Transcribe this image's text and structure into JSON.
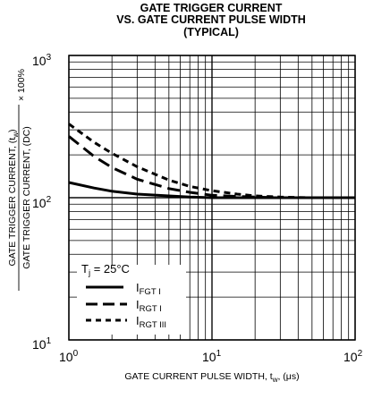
{
  "chart_data": {
    "type": "line",
    "title_lines": [
      "GATE TRIGGER CURRENT",
      "VS. GATE CURRENT PULSE WIDTH",
      "(TYPICAL)"
    ],
    "x_axis": {
      "scale": "log",
      "range": [
        1,
        100
      ],
      "label_prefix": "GATE CURRENT PULSE WIDTH, t",
      "label_sub": "w",
      "label_suffix": ", (μs)",
      "ticks": [
        {
          "base": "10",
          "exp": "0",
          "value": 1
        },
        {
          "base": "10",
          "exp": "1",
          "value": 10
        },
        {
          "base": "10",
          "exp": "2",
          "value": 100
        }
      ]
    },
    "y_axis": {
      "scale": "log",
      "range": [
        10,
        1000
      ],
      "label_top": "GATE TRIGGER CURRENT, (t",
      "label_top_sub": "w",
      "label_top_end": ")",
      "label_bottom": "GATE TRIGGER CURRENT, (DC)",
      "label_factor": "× 100%",
      "ticks": [
        {
          "base": "10",
          "exp": "1",
          "value": 10
        },
        {
          "base": "10",
          "exp": "2",
          "value": 100
        },
        {
          "base": "10",
          "exp": "3",
          "value": 1000
        }
      ]
    },
    "grid": true,
    "legend": {
      "placement": "bottom-left",
      "header_prefix": "T",
      "header_sub": "j",
      "header_suffix": " = 25°C"
    },
    "series": [
      {
        "name": "I",
        "name_sub": "FGT I",
        "style": "solid",
        "x": [
          1,
          1.5,
          2,
          3,
          5,
          7,
          10,
          20,
          30,
          50,
          100
        ],
        "y": [
          128,
          117,
          111,
          106,
          103,
          101,
          100,
          100,
          100,
          100,
          100
        ]
      },
      {
        "name": "I",
        "name_sub": "RGT I",
        "style": "long-dash",
        "x": [
          1,
          1.5,
          2,
          3,
          5,
          7,
          10,
          15,
          20,
          30,
          50,
          100
        ],
        "y": [
          270,
          195,
          163,
          135,
          116,
          109,
          104,
          102,
          101,
          100,
          100,
          100
        ]
      },
      {
        "name": "I",
        "name_sub": "RGT III",
        "style": "short-dash",
        "x": [
          1,
          1.5,
          2,
          3,
          5,
          7,
          10,
          15,
          20,
          30,
          50,
          100
        ],
        "y": [
          330,
          245,
          205,
          165,
          133,
          120,
          112,
          106,
          103,
          101,
          100,
          100
        ]
      }
    ]
  }
}
